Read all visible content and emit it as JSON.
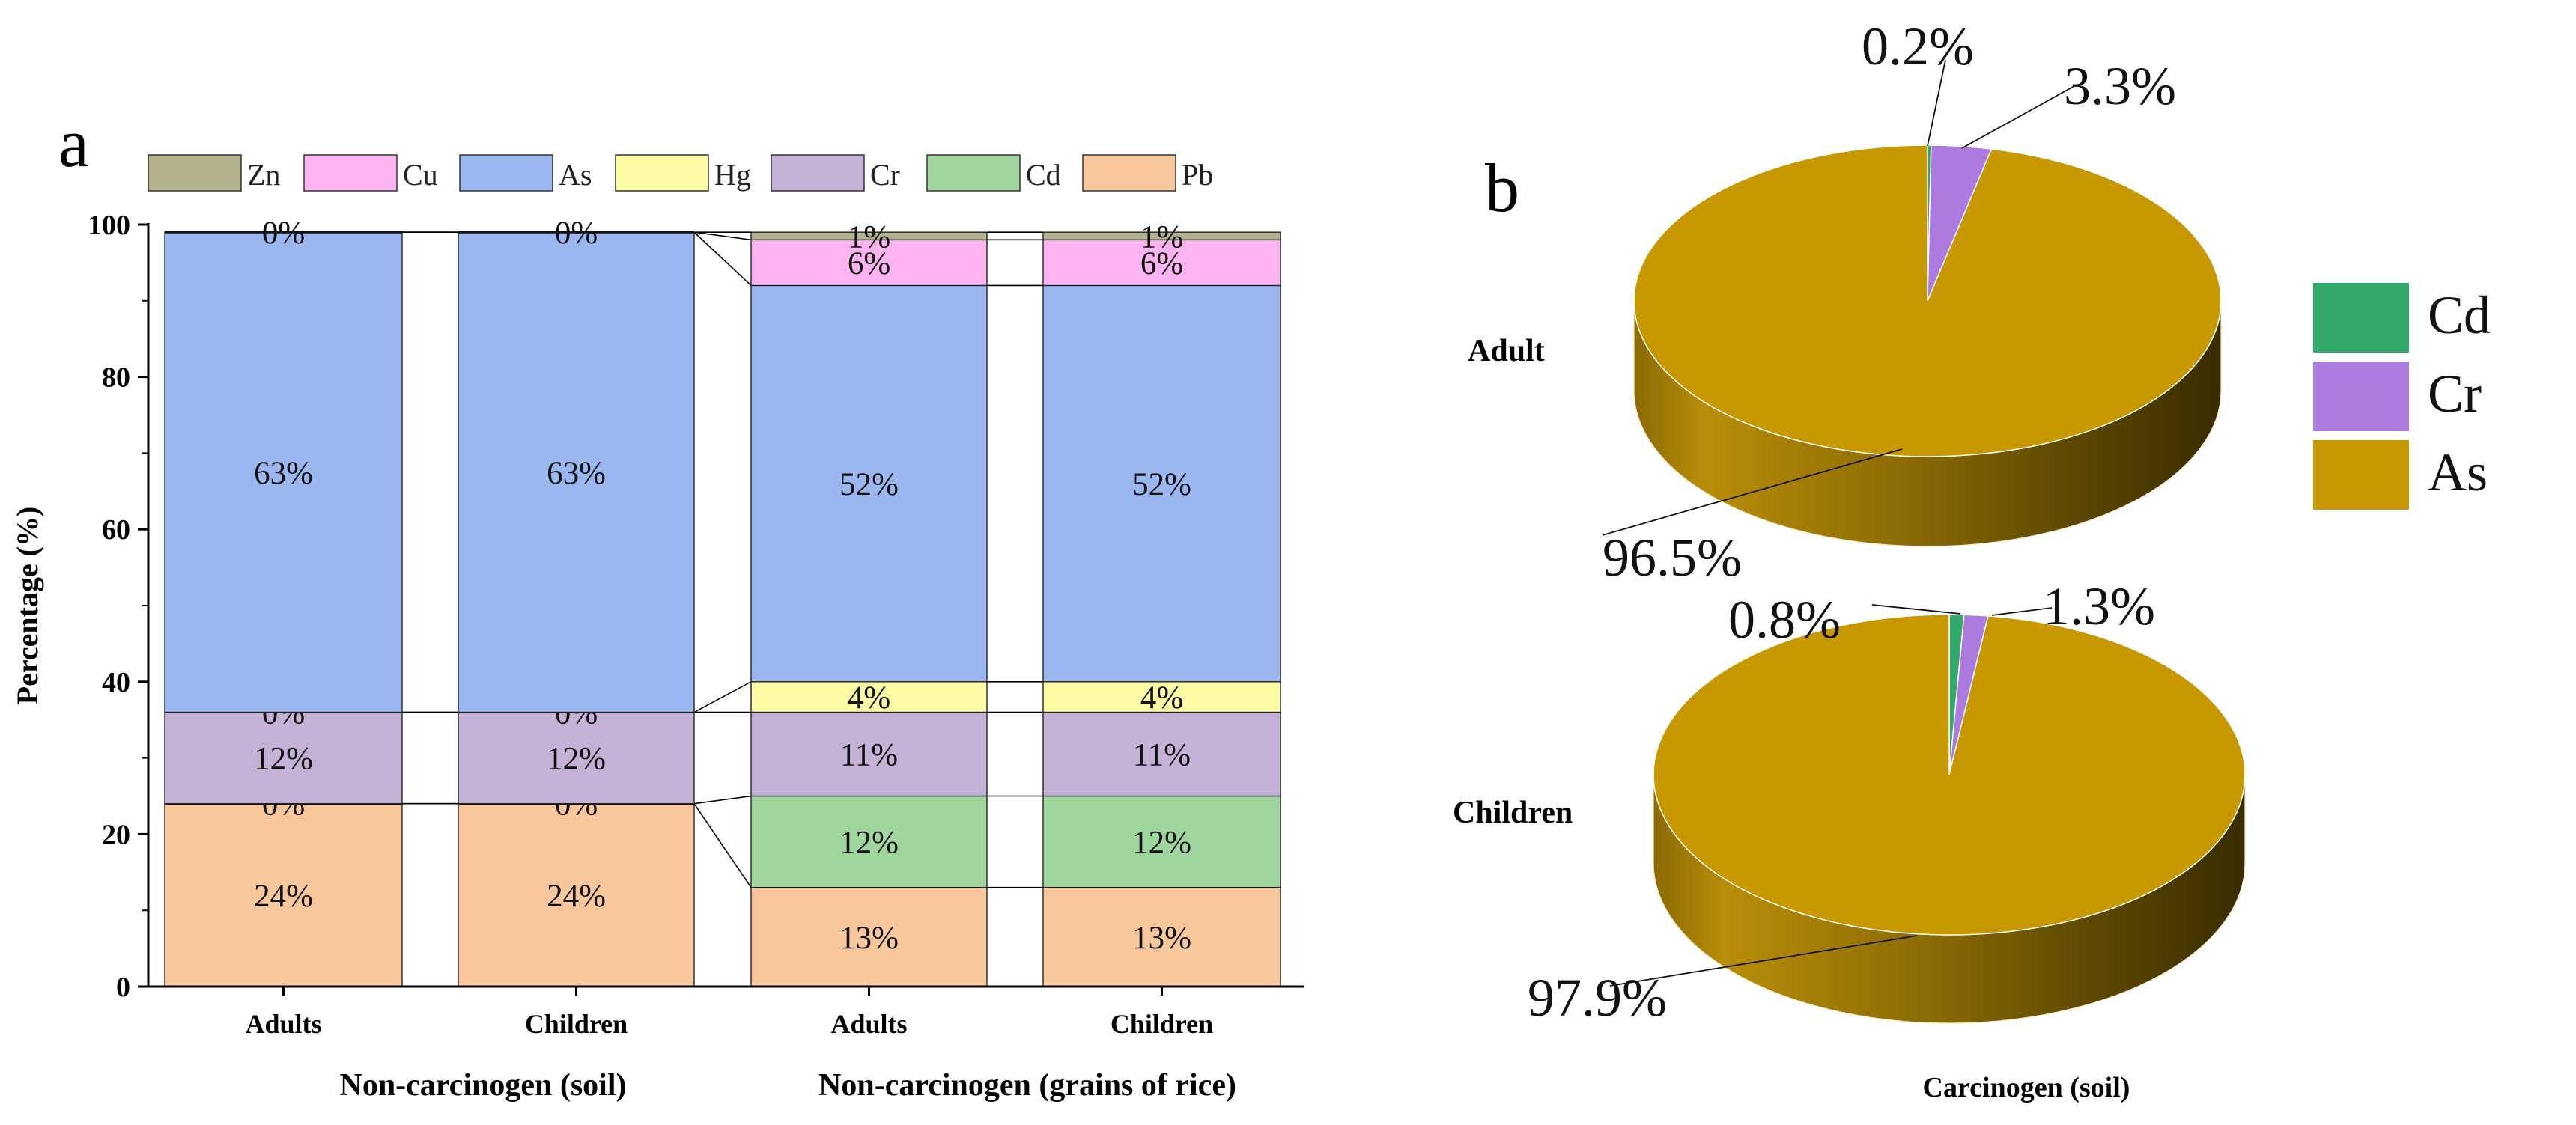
{
  "panel_a_label": "a",
  "panel_b_label": "b",
  "chart_data": [
    {
      "type": "bar",
      "stacked": true,
      "normalized": true,
      "title": "",
      "ylabel": "Percentage (%)",
      "ylim": [
        0,
        100
      ],
      "yticks": [
        "0",
        "20",
        "40",
        "60",
        "80",
        "100"
      ],
      "categories": [
        "Adults",
        "Children",
        "Adults",
        "Children"
      ],
      "group_labels": [
        "Non-carcinogen (soil)",
        "Non-carcinogen (grains of rice)"
      ],
      "colors": {
        "Pb": "#f8c79b",
        "Cd": "#9ed69e",
        "Cr": "#c3b1d6",
        "Hg": "#fbfba3",
        "As": "#9ab7ef",
        "Cu": "#fbb4f0",
        "Zn": "#b2b28f"
      },
      "legend": [
        "Zn",
        "Cu",
        "As",
        "Hg",
        "Cr",
        "Cd",
        "Pb"
      ],
      "stack_order": [
        "Pb",
        "Cd",
        "Cr",
        "Hg",
        "As",
        "Cu",
        "Zn"
      ],
      "series": [
        {
          "name": "Pb",
          "values": [
            24,
            24,
            13,
            13
          ],
          "labels": [
            "24%",
            "24%",
            "13%",
            "13%"
          ]
        },
        {
          "name": "Cd",
          "values": [
            0,
            0,
            12,
            12
          ],
          "labels": [
            "0%",
            "0%",
            "12%",
            "12%"
          ]
        },
        {
          "name": "Cr",
          "values": [
            12,
            12,
            11,
            11
          ],
          "labels": [
            "12%",
            "12%",
            "11%",
            "11%"
          ]
        },
        {
          "name": "Hg",
          "values": [
            0,
            0,
            4,
            4
          ],
          "labels": [
            "0%",
            "0%",
            "4%",
            "4%"
          ]
        },
        {
          "name": "As",
          "values": [
            63,
            63,
            52,
            52
          ],
          "labels": [
            "63%",
            "63%",
            "52%",
            "52%"
          ]
        },
        {
          "name": "Cu",
          "values": [
            0,
            0,
            6,
            6
          ],
          "labels": [
            "0%",
            "0%",
            "6%",
            "6%"
          ]
        },
        {
          "name": "Zn",
          "values": [
            0,
            0,
            1,
            1
          ],
          "labels": [
            "",
            "",
            "1%",
            "1%"
          ]
        }
      ]
    },
    {
      "type": "pie",
      "style": "3d",
      "title": "Adult",
      "colors": {
        "Cd": "#33a96b",
        "Cr": "#ad7adf",
        "As": "#c79800"
      },
      "slices": [
        {
          "name": "Cd",
          "value": 0.2,
          "label": "0.2%"
        },
        {
          "name": "Cr",
          "value": 3.3,
          "label": "3.3%"
        },
        {
          "name": "As",
          "value": 96.5,
          "label": "96.5%"
        }
      ]
    },
    {
      "type": "pie",
      "style": "3d",
      "title": "Children",
      "colors": {
        "Cd": "#33a96b",
        "Cr": "#ad7adf",
        "As": "#c79800"
      },
      "slices": [
        {
          "name": "Cd",
          "value": 0.8,
          "label": "0.8%"
        },
        {
          "name": "Cr",
          "value": 1.3,
          "label": "1.3%"
        },
        {
          "name": "As",
          "value": 97.9,
          "label": "97.9%"
        }
      ]
    }
  ],
  "pie_legend": [
    "Cd",
    "Cr",
    "As"
  ],
  "pie_xlabel": "Carcinogen (soil)"
}
